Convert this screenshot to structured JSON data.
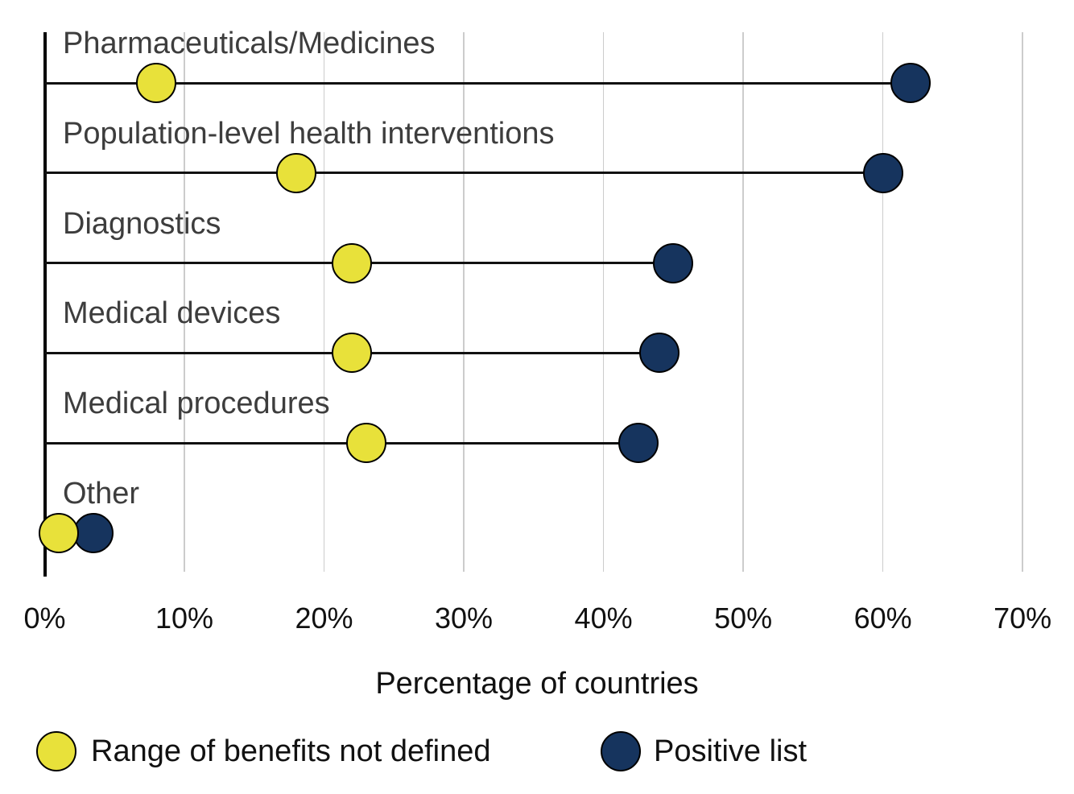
{
  "chart_data": {
    "type": "scatter",
    "variant": "dumbbell-lollipop",
    "orientation": "horizontal",
    "categories": [
      "Pharmaceuticals/Medicines",
      "Population-level health interventions",
      "Diagnostics",
      "Medical devices",
      "Medical procedures",
      "Other"
    ],
    "series": [
      {
        "name": "Range of benefits not defined",
        "color": "#e8e13a",
        "values": [
          8,
          18,
          22,
          22,
          23,
          1
        ]
      },
      {
        "name": "Positive list",
        "color": "#16345e",
        "values": [
          62,
          60,
          45,
          44,
          42.5,
          3.5
        ]
      }
    ],
    "xlabel": "Percentage of countries",
    "xlim": [
      0,
      70
    ],
    "x_tick_values": [
      0,
      10,
      20,
      30,
      40,
      50,
      60,
      70
    ],
    "x_tick_labels": [
      "0%",
      "10%",
      "20%",
      "30%",
      "40%",
      "50%",
      "60%",
      "70%"
    ],
    "grid": "vertical",
    "gridline_color": "#cccccc",
    "axis_color": "#000000",
    "category_label_color": "#3d3d3d",
    "legend_position": "bottom"
  }
}
